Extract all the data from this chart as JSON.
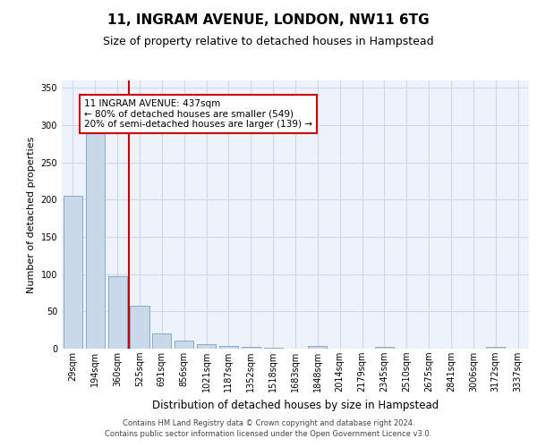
{
  "title": "11, INGRAM AVENUE, LONDON, NW11 6TG",
  "subtitle": "Size of property relative to detached houses in Hampstead",
  "xlabel": "Distribution of detached houses by size in Hampstead",
  "ylabel": "Number of detached properties",
  "categories": [
    "29sqm",
    "194sqm",
    "360sqm",
    "525sqm",
    "691sqm",
    "856sqm",
    "1021sqm",
    "1187sqm",
    "1352sqm",
    "1518sqm",
    "1683sqm",
    "1848sqm",
    "2014sqm",
    "2179sqm",
    "2345sqm",
    "2510sqm",
    "2675sqm",
    "2841sqm",
    "3006sqm",
    "3172sqm",
    "3337sqm"
  ],
  "values": [
    205,
    290,
    97,
    58,
    21,
    11,
    6,
    4,
    3,
    1,
    0,
    4,
    0,
    0,
    3,
    0,
    0,
    0,
    0,
    3,
    0
  ],
  "bar_color": "#c9d9ea",
  "bar_edge_color": "#7aa0bf",
  "vline_x_index": 2,
  "vline_color": "#cc0000",
  "annotation_text": "11 INGRAM AVENUE: 437sqm\n← 80% of detached houses are smaller (549)\n20% of semi-detached houses are larger (139) →",
  "ylim": [
    0,
    360
  ],
  "yticks": [
    0,
    50,
    100,
    150,
    200,
    250,
    300,
    350
  ],
  "grid_color": "#cdd8ea",
  "bg_color": "#eef2fb",
  "footer": "Contains HM Land Registry data © Crown copyright and database right 2024.\nContains public sector information licensed under the Open Government Licence v3.0.",
  "title_fontsize": 11,
  "subtitle_fontsize": 9,
  "xlabel_fontsize": 8.5,
  "ylabel_fontsize": 8,
  "tick_fontsize": 7,
  "annotation_fontsize": 7.5,
  "footer_fontsize": 6
}
